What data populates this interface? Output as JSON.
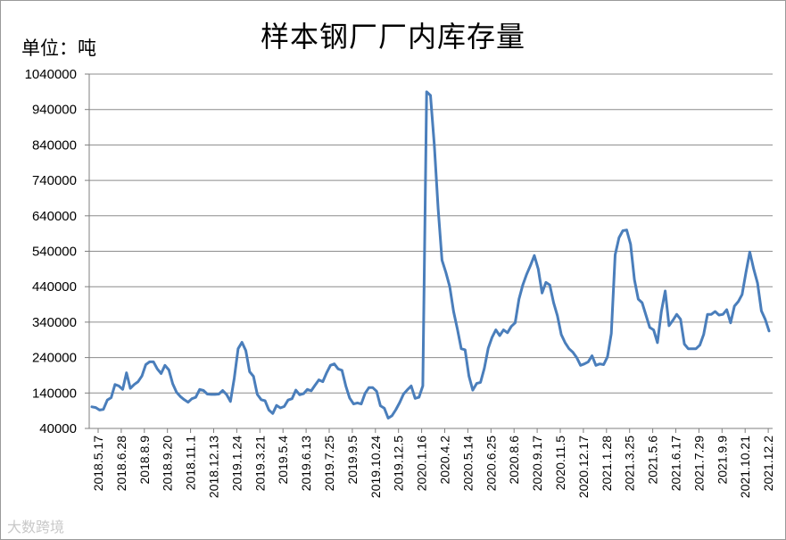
{
  "title": "样本钢厂厂内库存量",
  "unit_label": "单位：吨",
  "watermark": "大数跨境",
  "colors": {
    "line": "#4a7ebb",
    "grid": "#8c8c8c",
    "axis": "#7f7f7f"
  },
  "chart_data": {
    "type": "line",
    "title": "样本钢厂厂内库存量",
    "ylabel": "单位：吨",
    "ylim": [
      40000,
      1040000
    ],
    "yticks": [
      40000,
      140000,
      240000,
      340000,
      440000,
      540000,
      640000,
      740000,
      840000,
      940000,
      1040000
    ],
    "grid": true,
    "xtick_labels": [
      "2018.5.17",
      "2018.6.28",
      "2018.8.9",
      "2018.9.20",
      "2018.11.1",
      "2018.12.13",
      "2019.1.24",
      "2019.3.21",
      "2019.5.4",
      "2019.6.13",
      "2019.7.25",
      "2019.9.5",
      "2019.10.24",
      "2019.12.5",
      "2020.1.16",
      "2020.4.2",
      "2020.5.14",
      "2020.6.25",
      "2020.8.6",
      "2020.9.17",
      "2020.11.5",
      "2020.12.17",
      "2021.1.28",
      "2021.3.25",
      "2021.5.6",
      "2021.6.17",
      "2021.7.29",
      "2021.9.9",
      "2021.10.21",
      "2021.12.2"
    ],
    "series": [
      {
        "values": [
          101000,
          99000,
          92000,
          94000,
          120000,
          127000,
          164000,
          160000,
          150000,
          197000,
          153000,
          164000,
          172000,
          188000,
          220000,
          228000,
          228000,
          208000,
          195000,
          218000,
          205000,
          166000,
          142000,
          130000,
          121000,
          114000,
          124000,
          128000,
          150000,
          147000,
          137000,
          136000,
          136000,
          137000,
          147000,
          136000,
          116000,
          182000,
          265000,
          283000,
          260000,
          200000,
          187000,
          136000,
          121000,
          118000,
          92000,
          82000,
          105000,
          98000,
          102000,
          120000,
          124000,
          148000,
          135000,
          138000,
          150000,
          146000,
          162000,
          177000,
          172000,
          197000,
          218000,
          222000,
          208000,
          204000,
          160000,
          126000,
          109000,
          112000,
          109000,
          139000,
          155000,
          155000,
          145000,
          104000,
          97000,
          69000,
          76000,
          93000,
          113000,
          137000,
          149000,
          160000,
          125000,
          128000,
          160000,
          990000,
          980000,
          840000,
          660000,
          515000,
          480000,
          440000,
          370000,
          320000,
          265000,
          262000,
          188000,
          148000,
          167000,
          170000,
          210000,
          266000,
          297000,
          318000,
          302000,
          318000,
          310000,
          328000,
          338000,
          405000,
          445000,
          475000,
          500000,
          528000,
          490000,
          422000,
          452000,
          445000,
          395000,
          358000,
          305000,
          282000,
          265000,
          255000,
          240000,
          218000,
          222000,
          228000,
          245000,
          218000,
          222000,
          220000,
          242000,
          308000,
          530000,
          578000,
          598000,
          600000,
          560000,
          460000,
          405000,
          395000,
          360000,
          325000,
          318000,
          282000,
          370000,
          428000,
          330000,
          345000,
          362000,
          348000,
          278000,
          265000,
          265000,
          265000,
          275000,
          305000,
          362000,
          362000,
          370000,
          360000,
          362000,
          375000,
          338000,
          385000,
          398000,
          418000,
          480000,
          538000,
          490000,
          450000,
          372000,
          348000,
          315000
        ]
      }
    ]
  }
}
